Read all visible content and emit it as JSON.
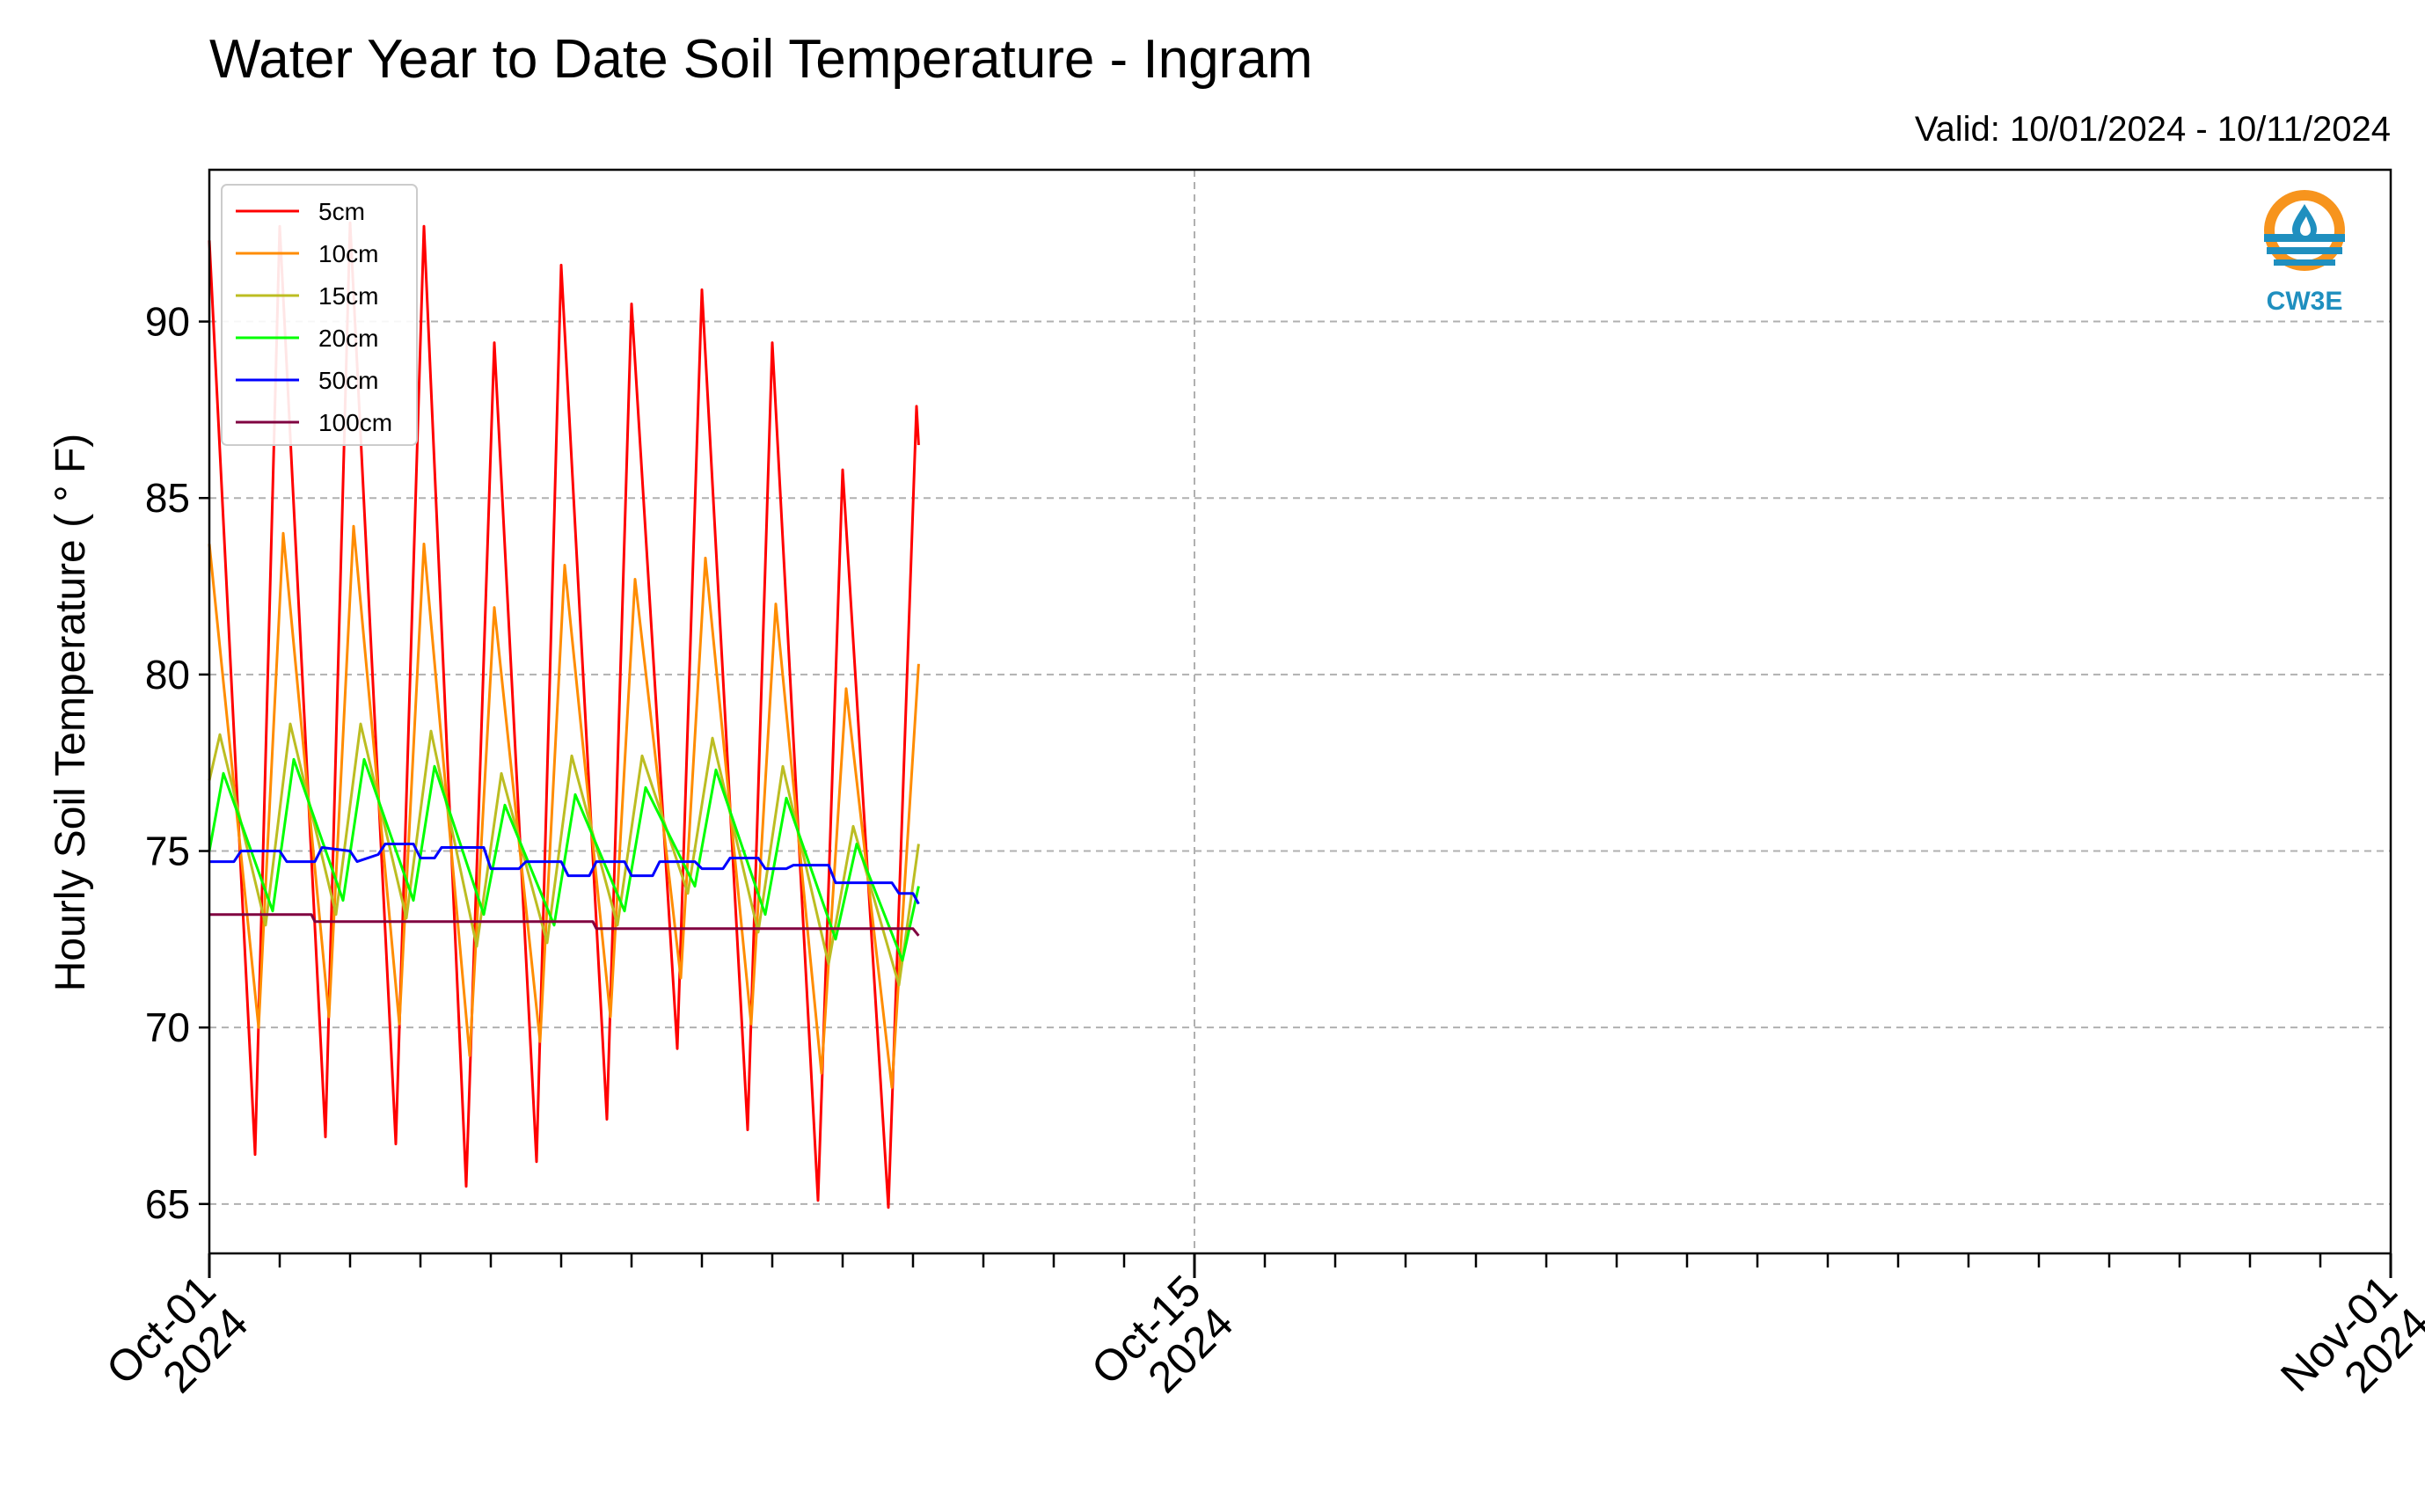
{
  "chart_data": {
    "type": "line",
    "title": "Water Year to Date Soil Temperature - Ingram",
    "subtitle": "Valid: 10/01/2024 - 10/11/2024",
    "ylabel": "Hourly Soil Temperature ( ° F)",
    "xlabel": "",
    "x_range_days": [
      0,
      31
    ],
    "x_start": "2024-10-01",
    "ylim": [
      63.6,
      94.3
    ],
    "y_ticks": [
      65,
      70,
      75,
      80,
      85,
      90
    ],
    "x_major_ticks": [
      {
        "day": 0,
        "line1": "Oct-01",
        "line2": "2024"
      },
      {
        "day": 14,
        "line1": "Oct-15",
        "line2": "2024"
      },
      {
        "day": 31,
        "line1": "Nov-01",
        "line2": "2024"
      }
    ],
    "x_minor_step_days": 1,
    "grid": true,
    "legend_position": "top-left",
    "series": [
      {
        "name": "5cm",
        "color": "#ff0000",
        "points": [
          [
            0,
            92.3
          ],
          [
            0.65,
            66.4
          ],
          [
            1,
            92.7
          ],
          [
            1.65,
            66.9
          ],
          [
            2,
            92.8
          ],
          [
            2.65,
            66.7
          ],
          [
            3.05,
            92.7
          ],
          [
            3.65,
            65.5
          ],
          [
            4.05,
            89.4
          ],
          [
            4.65,
            66.2
          ],
          [
            5,
            91.6
          ],
          [
            5.65,
            67.4
          ],
          [
            6,
            90.5
          ],
          [
            6.65,
            69.4
          ],
          [
            7,
            90.9
          ],
          [
            7.65,
            67.1
          ],
          [
            8,
            89.4
          ],
          [
            8.65,
            65.1
          ],
          [
            9,
            85.8
          ],
          [
            9.65,
            64.9
          ],
          [
            10.05,
            87.6
          ],
          [
            10.08,
            86.5
          ]
        ]
      },
      {
        "name": "10cm",
        "color": "#ff8c00",
        "points": [
          [
            0,
            83.7
          ],
          [
            0.7,
            70
          ],
          [
            1.05,
            84
          ],
          [
            1.7,
            70.3
          ],
          [
            2.05,
            84.2
          ],
          [
            2.7,
            70.1
          ],
          [
            3.05,
            83.7
          ],
          [
            3.7,
            69.2
          ],
          [
            4.05,
            81.9
          ],
          [
            4.7,
            69.6
          ],
          [
            5.05,
            83.1
          ],
          [
            5.7,
            70.3
          ],
          [
            6.05,
            82.7
          ],
          [
            6.7,
            71.4
          ],
          [
            7.05,
            83.3
          ],
          [
            7.7,
            70.1
          ],
          [
            8.05,
            82
          ],
          [
            8.7,
            68.7
          ],
          [
            9.05,
            79.6
          ],
          [
            9.7,
            68.3
          ],
          [
            10.08,
            80.3
          ]
        ]
      },
      {
        "name": "15cm",
        "color": "#bcbd22",
        "points": [
          [
            0,
            77
          ],
          [
            0.15,
            78.3
          ],
          [
            0.8,
            72.9
          ],
          [
            1.15,
            78.6
          ],
          [
            1.8,
            73.2
          ],
          [
            2.15,
            78.6
          ],
          [
            2.8,
            73.1
          ],
          [
            3.15,
            78.4
          ],
          [
            3.8,
            72.3
          ],
          [
            4.15,
            77.2
          ],
          [
            4.8,
            72.4
          ],
          [
            5.15,
            77.7
          ],
          [
            5.8,
            72.9
          ],
          [
            6.15,
            77.7
          ],
          [
            6.8,
            73.8
          ],
          [
            7.15,
            78.2
          ],
          [
            7.8,
            72.7
          ],
          [
            8.15,
            77.4
          ],
          [
            8.8,
            71.8
          ],
          [
            9.15,
            75.7
          ],
          [
            9.8,
            71.2
          ],
          [
            10.08,
            75.2
          ]
        ]
      },
      {
        "name": "20cm",
        "color": "#00ff00",
        "points": [
          [
            0,
            75
          ],
          [
            0.2,
            77.2
          ],
          [
            0.9,
            73.3
          ],
          [
            1.2,
            77.6
          ],
          [
            1.9,
            73.6
          ],
          [
            2.2,
            77.6
          ],
          [
            2.9,
            73.6
          ],
          [
            3.2,
            77.4
          ],
          [
            3.9,
            73.2
          ],
          [
            4.2,
            76.3
          ],
          [
            4.9,
            72.9
          ],
          [
            5.2,
            76.6
          ],
          [
            5.9,
            73.3
          ],
          [
            6.2,
            76.8
          ],
          [
            6.9,
            74
          ],
          [
            7.2,
            77.3
          ],
          [
            7.9,
            73.2
          ],
          [
            8.2,
            76.5
          ],
          [
            8.9,
            72.5
          ],
          [
            9.2,
            75.2
          ],
          [
            9.85,
            71.9
          ],
          [
            10.08,
            74
          ]
        ]
      },
      {
        "name": "50cm",
        "color": "#0000ff",
        "points": [
          [
            0,
            74.7
          ],
          [
            0.35,
            74.7
          ],
          [
            0.45,
            75
          ],
          [
            1.0,
            75
          ],
          [
            1.1,
            74.7
          ],
          [
            1.5,
            74.7
          ],
          [
            1.6,
            75.1
          ],
          [
            2.0,
            75
          ],
          [
            2.1,
            74.7
          ],
          [
            2.4,
            74.9
          ],
          [
            2.5,
            75.2
          ],
          [
            2.9,
            75.2
          ],
          [
            3.0,
            74.8
          ],
          [
            3.2,
            74.8
          ],
          [
            3.3,
            75.1
          ],
          [
            3.9,
            75.1
          ],
          [
            4.0,
            74.5
          ],
          [
            4.4,
            74.5
          ],
          [
            4.5,
            74.7
          ],
          [
            5.0,
            74.7
          ],
          [
            5.1,
            74.3
          ],
          [
            5.4,
            74.3
          ],
          [
            5.5,
            74.7
          ],
          [
            5.9,
            74.7
          ],
          [
            6.0,
            74.3
          ],
          [
            6.3,
            74.3
          ],
          [
            6.4,
            74.7
          ],
          [
            6.9,
            74.7
          ],
          [
            7.0,
            74.5
          ],
          [
            7.3,
            74.5
          ],
          [
            7.4,
            74.8
          ],
          [
            7.8,
            74.8
          ],
          [
            7.9,
            74.5
          ],
          [
            8.2,
            74.5
          ],
          [
            8.3,
            74.6
          ],
          [
            8.8,
            74.6
          ],
          [
            8.9,
            74.1
          ],
          [
            9.7,
            74.1
          ],
          [
            9.8,
            73.8
          ],
          [
            10.0,
            73.8
          ],
          [
            10.08,
            73.5
          ]
        ]
      },
      {
        "name": "100cm",
        "color": "#800040",
        "points": [
          [
            0,
            73.2
          ],
          [
            1.45,
            73.2
          ],
          [
            1.5,
            73
          ],
          [
            5.45,
            73
          ],
          [
            5.5,
            72.8
          ],
          [
            10,
            72.8
          ],
          [
            10.08,
            72.6
          ]
        ]
      }
    ]
  },
  "logo": {
    "text": "CW3E"
  }
}
